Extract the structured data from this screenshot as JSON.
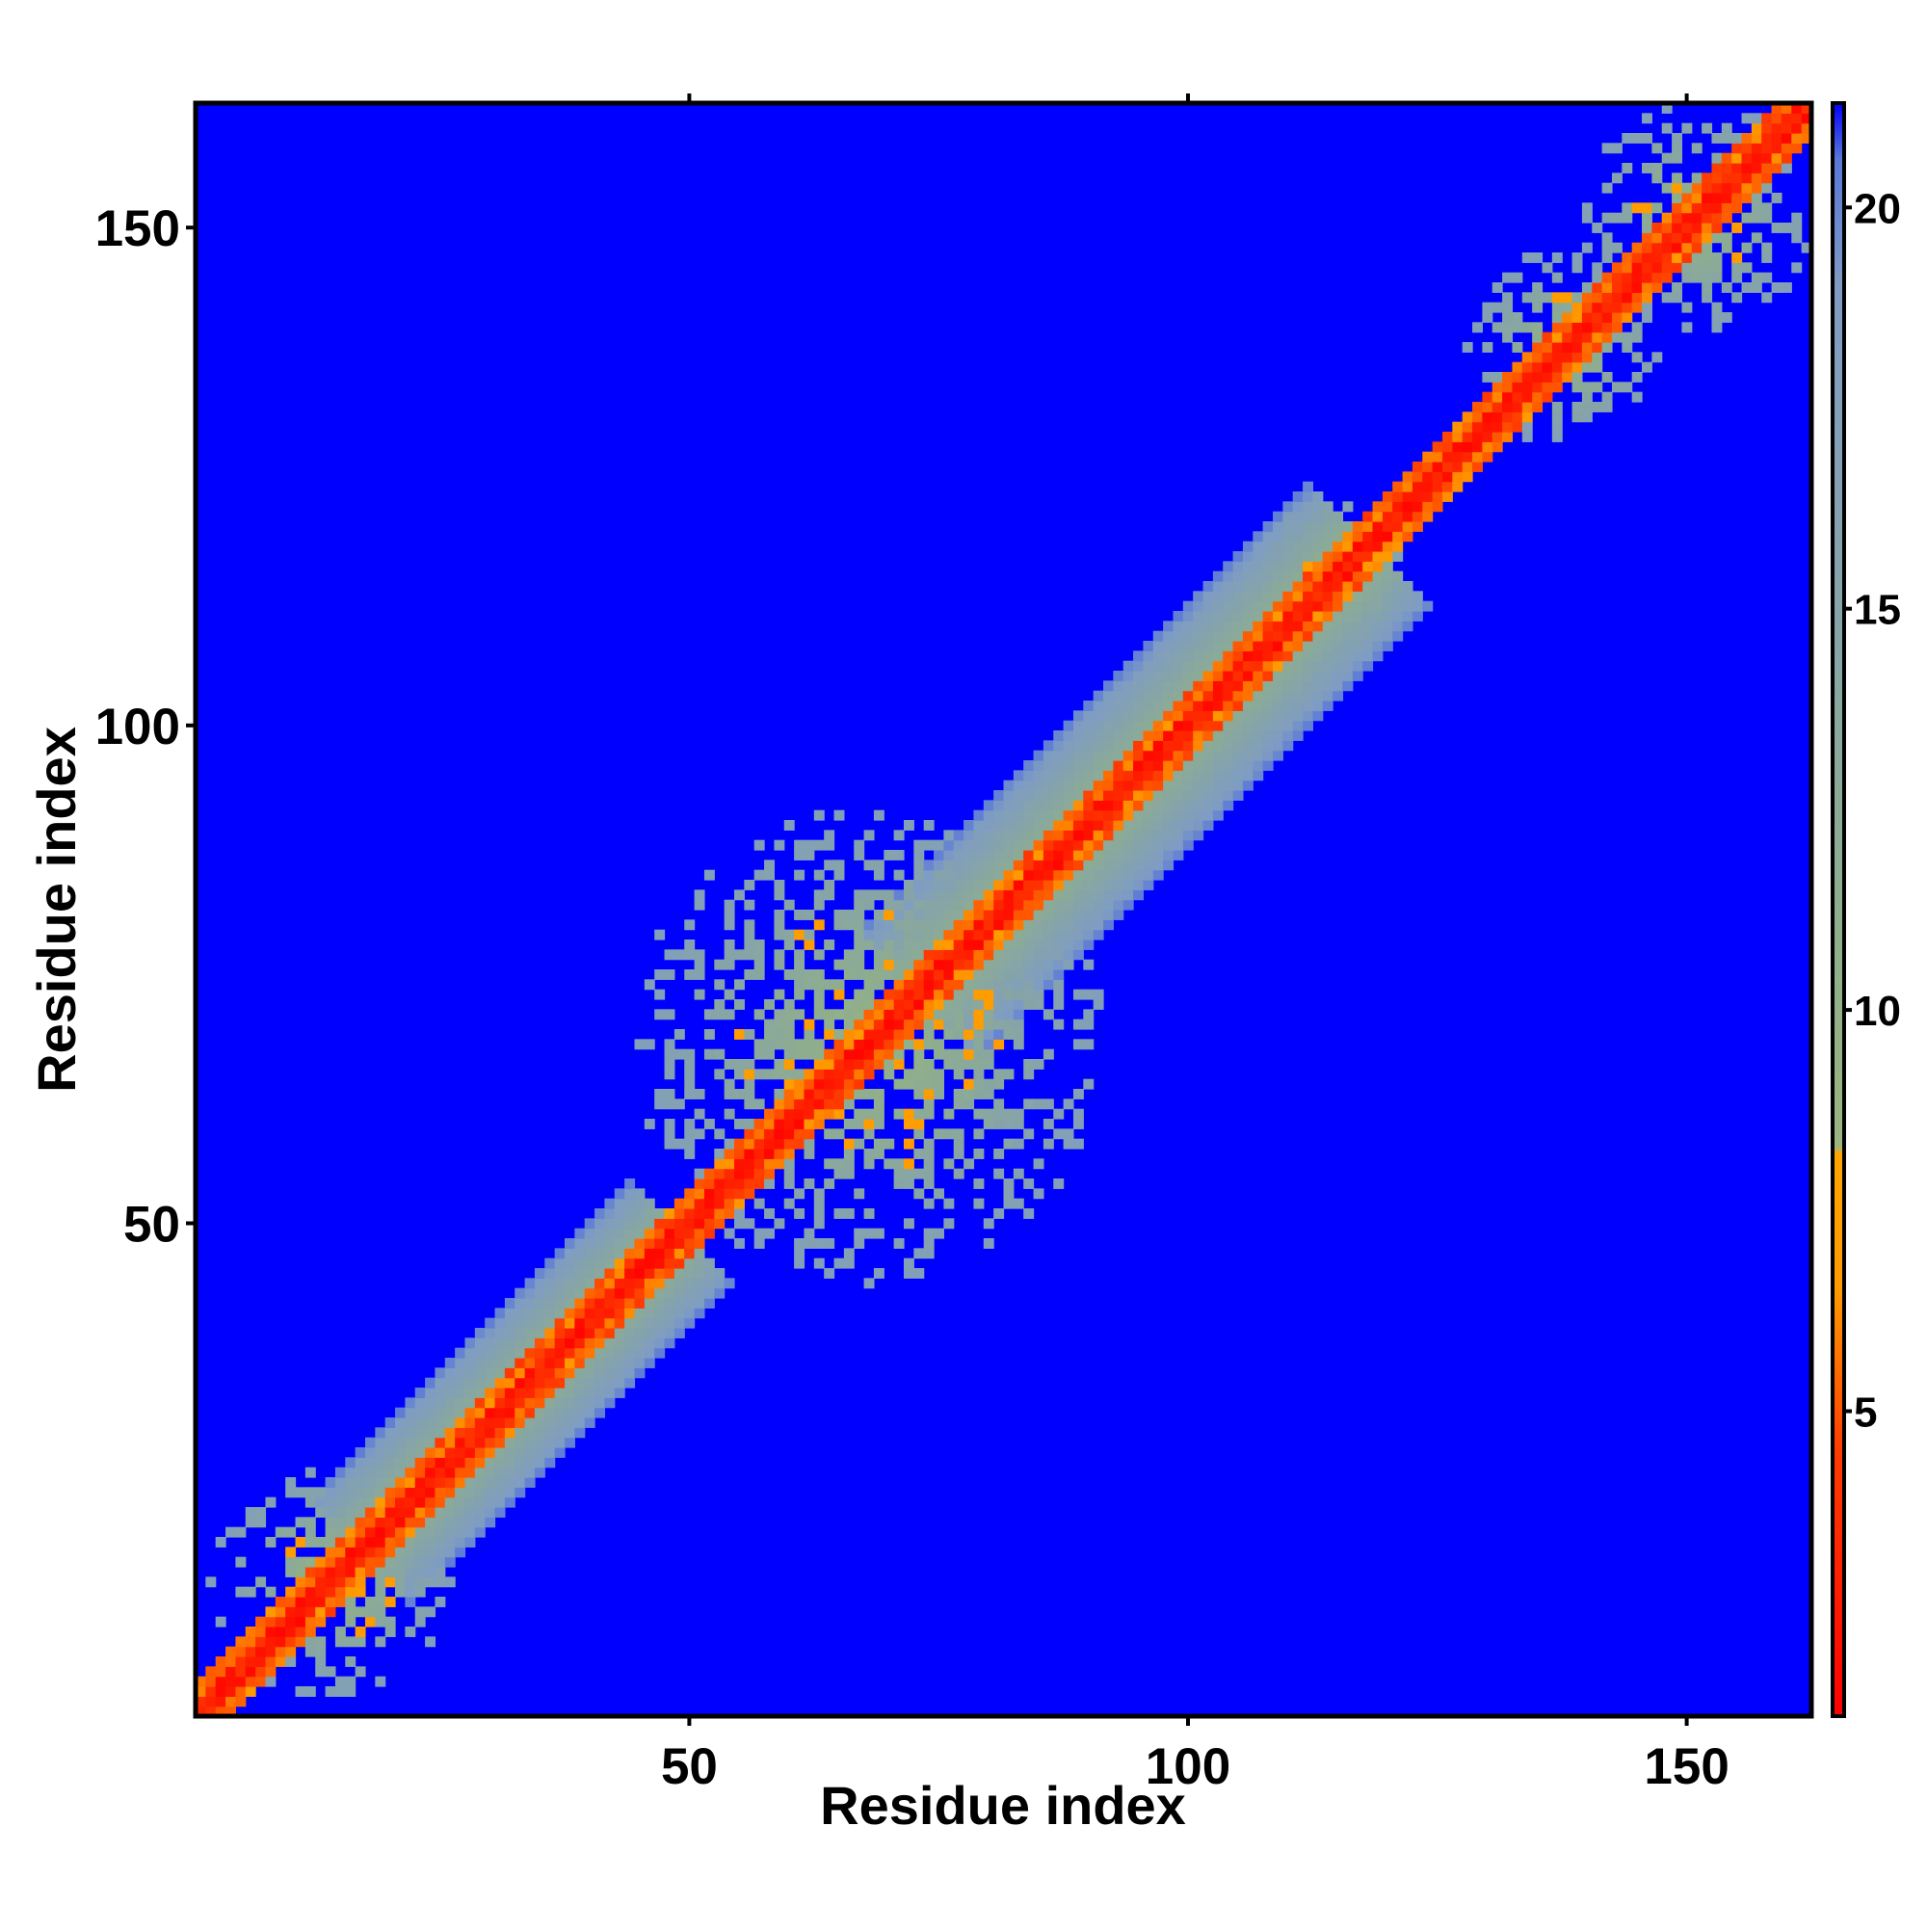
{
  "chart_data": {
    "type": "heatmap",
    "title": "",
    "xlabel": "Residue index",
    "ylabel": "Residue index",
    "xlim": [
      1,
      162
    ],
    "ylim": [
      1,
      162
    ],
    "xticks": [
      50,
      100,
      150
    ],
    "yticks": [
      50,
      100,
      150
    ],
    "grid": false,
    "matrix_size": 162,
    "description_note": "",
    "colorbar": {
      "range": [
        1.2,
        21.3
      ],
      "ticks": [
        5,
        10,
        15,
        20
      ],
      "stops": [
        {
          "value": 1.2,
          "color": "#ff0000"
        },
        {
          "value": 4.5,
          "color": "#ff3c00"
        },
        {
          "value": 6.5,
          "color": "#ff9900"
        },
        {
          "value": 8.2,
          "color": "#ffa500"
        },
        {
          "value": 8.3,
          "color": "#9ab57f"
        },
        {
          "value": 11.0,
          "color": "#8fae8c"
        },
        {
          "value": 15.0,
          "color": "#86a4a8"
        },
        {
          "value": 19.0,
          "color": "#7f9cc4"
        },
        {
          "value": 20.6,
          "color": "#5a78d8"
        },
        {
          "value": 21.3,
          "color": "#0000ff"
        }
      ]
    },
    "background_value": 21.3,
    "regions": {
      "main_diagonal_band": {
        "residues": [
          1,
          162
        ],
        "red_halfwidth": 1,
        "orange_halfwidth": 3
      },
      "wide_bands": [
        {
          "residues": [
            17,
            49
          ],
          "halfwidth": 10
        },
        {
          "residues": [
            73,
            118
          ],
          "halfwidth": 12
        }
      ],
      "patchy_clusters": [
        {
          "center": [
            14,
            14
          ],
          "radius": 12
        },
        {
          "center": [
            68,
            68
          ],
          "radius": 24
        },
        {
          "center": [
            115,
            115
          ],
          "radius": 8
        },
        {
          "center": [
            138,
            138
          ],
          "radius": 10
        },
        {
          "center": [
            151,
            151
          ],
          "radius": 12
        }
      ]
    },
    "colors": {
      "background": "#0000ff",
      "close": "#ff0000",
      "near": "#ffa500",
      "mid": "#8fae8c"
    }
  }
}
